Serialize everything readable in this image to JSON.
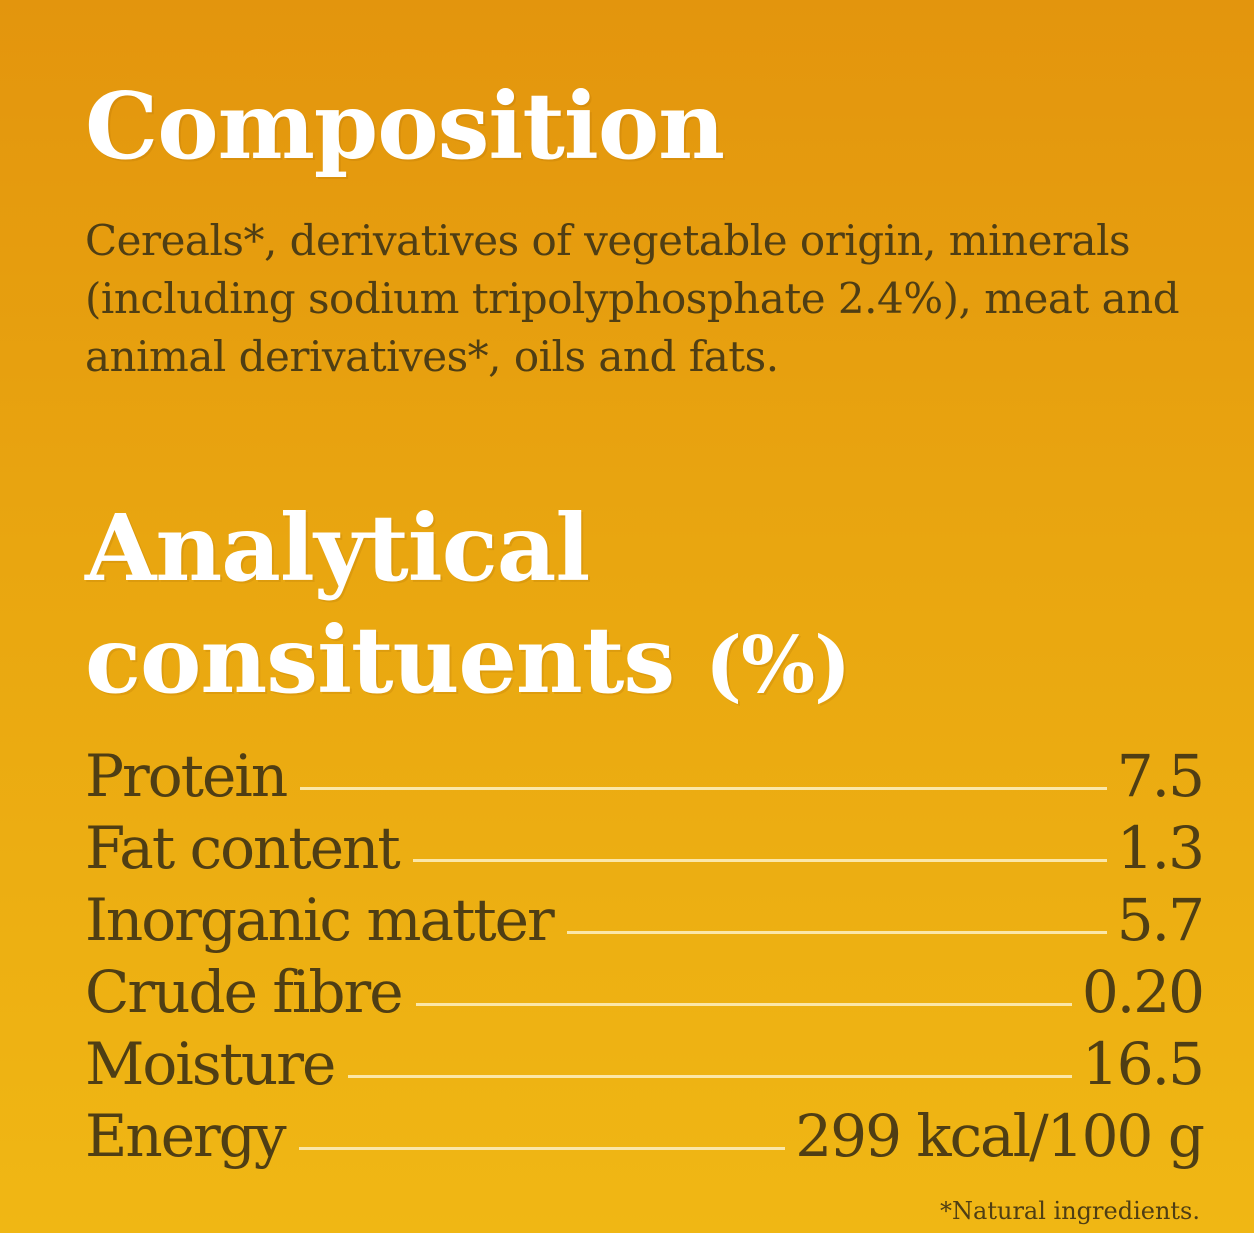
{
  "composition": {
    "title": "Composition",
    "text": "Cereals*, derivatives of vegetable origin, minerals (including sodium tripolyphosphate 2.4%), meat and animal derivatives*, oils and fats."
  },
  "analytical": {
    "title_line1": "Analytical",
    "title_line2": "consituents",
    "title_unit": "(%)",
    "rows": [
      {
        "label": "Protein",
        "value": "7.5"
      },
      {
        "label": "Fat content",
        "value": "1.3"
      },
      {
        "label": "Inorganic matter",
        "value": "5.7"
      },
      {
        "label": "Crude fibre",
        "value": "0.20"
      },
      {
        "label": "Moisture",
        "value": "16.5"
      },
      {
        "label": "Energy",
        "value": "299 kcal/100 g"
      }
    ]
  },
  "footnote": "*Natural ingredients.",
  "colors": {
    "background_top": "#e3950d",
    "background_bottom": "#f0b714",
    "heading": "#ffffff",
    "body_text": "#4f3e14",
    "leader_line": "#fbe7a8"
  }
}
